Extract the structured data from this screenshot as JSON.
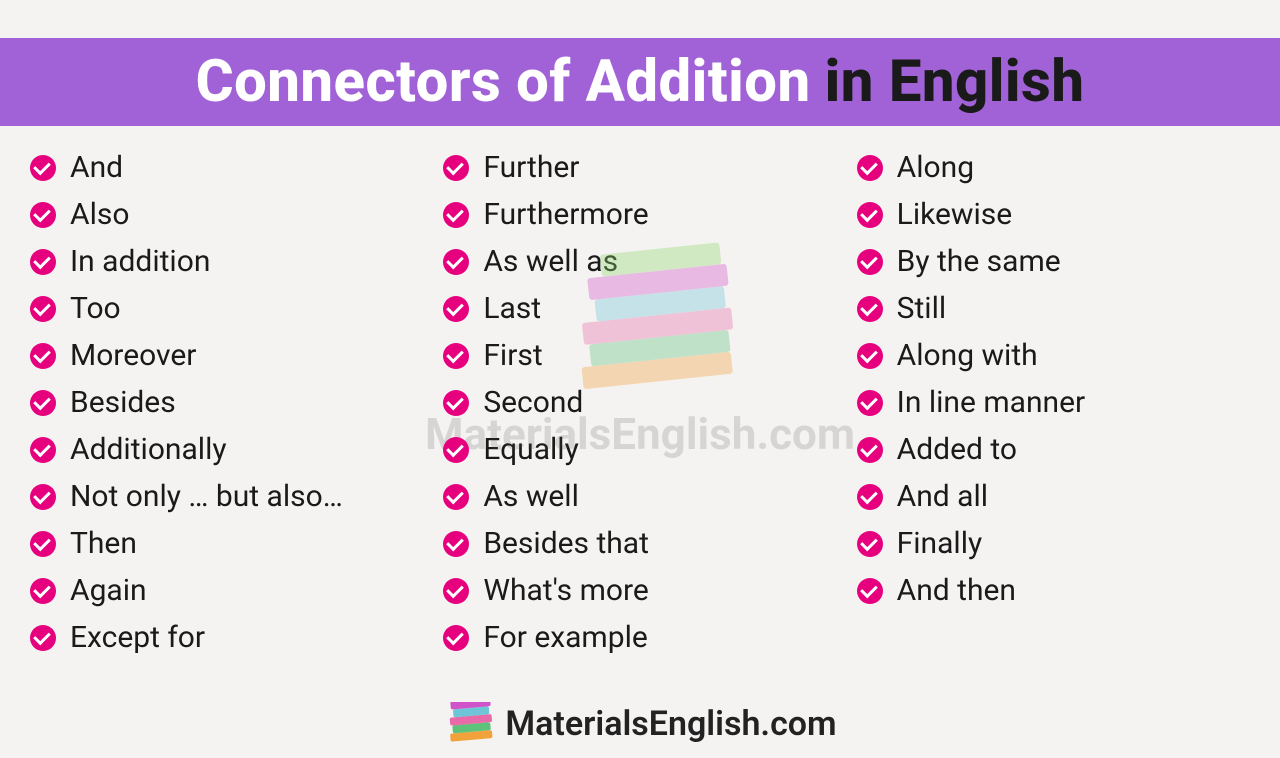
{
  "header": {
    "part1": "Connectors of Addition",
    "part2": "in English",
    "bg_color": "#a062d6",
    "part1_color": "#ffffff",
    "part2_color": "#1a1a1a"
  },
  "bullet_color": "#e6007e",
  "text_color": "#1a1a1a",
  "background_color": "#f5f3f2",
  "item_fontsize": 30,
  "header_fontsize": 58,
  "columns": [
    [
      "And",
      "Also",
      "In addition",
      "Too",
      "Moreover",
      "Besides",
      "Additionally",
      "Not only … but also…",
      "Then",
      "Again",
      "Except for"
    ],
    [
      "Further",
      "Furthermore",
      "As well as",
      "Last",
      "First",
      "Second",
      "Equally",
      "As well",
      "Besides that",
      "What's more",
      "For example"
    ],
    [
      "Along",
      "Likewise",
      "By the same",
      "Still",
      "Along with",
      "In line manner",
      "Added to",
      "And all",
      "Finally",
      "And then"
    ]
  ],
  "watermark": "MaterialsEnglish.com",
  "footer_text": "MaterialsEnglish.com"
}
